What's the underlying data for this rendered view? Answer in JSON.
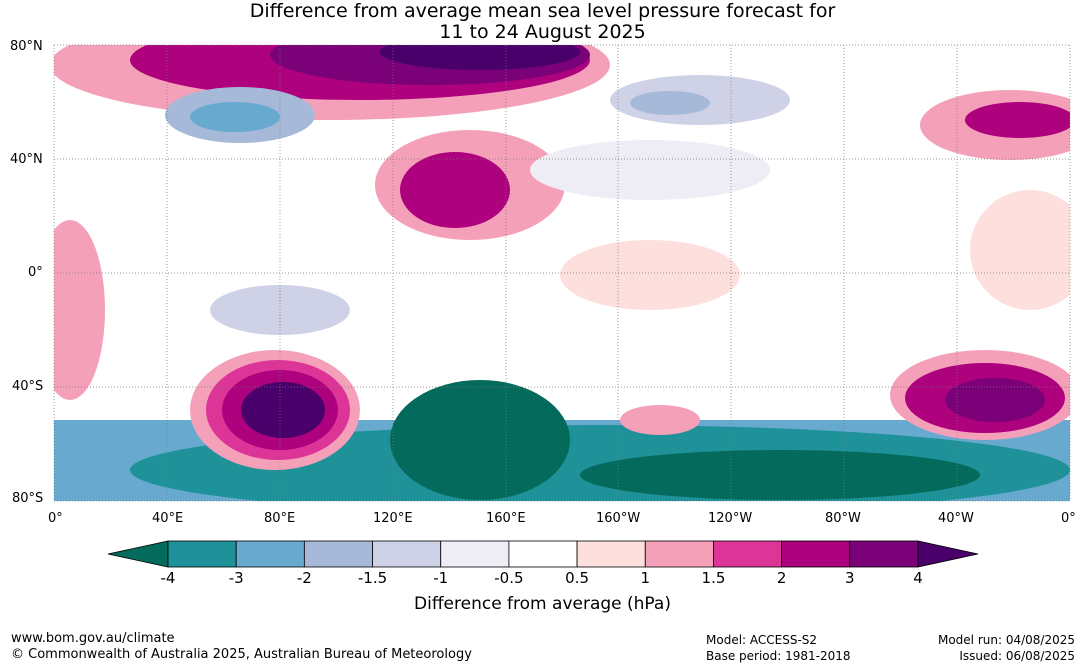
{
  "title": {
    "line1": "Difference from average mean sea level pressure forecast for",
    "line2": "11 to 24 August 2025"
  },
  "axes": {
    "lat_labels": [
      "80°N",
      "40°N",
      "0°",
      "40°S",
      "80°S"
    ],
    "lon_labels": [
      "0°",
      "40°E",
      "80°E",
      "120°E",
      "160°E",
      "160°W",
      "120°W",
      "80°W",
      "40°W",
      "0°"
    ]
  },
  "colorbar": {
    "ticks": [
      "-4",
      "-3",
      "-2",
      "-1.5",
      "-1",
      "-0.5",
      "0.5",
      "1",
      "1.5",
      "2",
      "3",
      "4"
    ],
    "colors": [
      "#046b5c",
      "#1f9199",
      "#67a9cf",
      "#a6b9d9",
      "#cfd1e6",
      "#eeecf4",
      "#ffffff",
      "#fde0dd",
      "#f5a0b9",
      "#dd3497",
      "#ae017e",
      "#7a0177",
      "#49006a"
    ],
    "label": "Difference from average (hPa)"
  },
  "footer": {
    "url": "www.bom.gov.au/climate",
    "copyright": "© Commonwealth of Australia 2025, Australian Bureau of Meteorology",
    "model": "Model: ACCESS-S2",
    "base_period": "Base period: 1981-2018",
    "model_run": "Model run: 04/08/2025",
    "issued": "Issued: 06/08/2025"
  }
}
